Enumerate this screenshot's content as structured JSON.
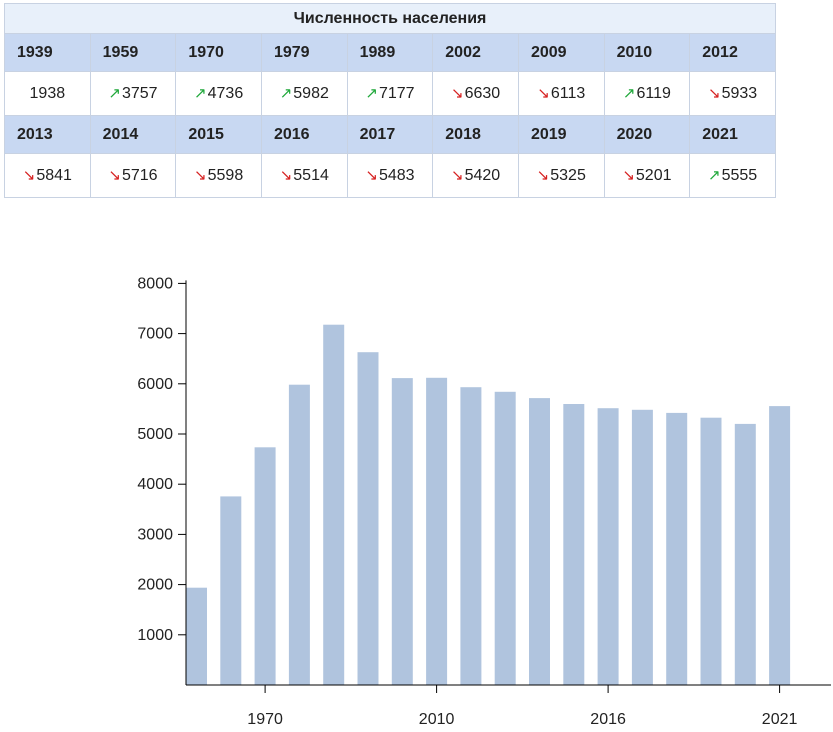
{
  "table": {
    "title": "Численность населения",
    "rows": [
      {
        "years": [
          "1939",
          "1959",
          "1970",
          "1979",
          "1989",
          "2002",
          "2009",
          "2010",
          "2012"
        ],
        "values": [
          {
            "value": "1938",
            "trend": "none"
          },
          {
            "value": "3757",
            "trend": "up"
          },
          {
            "value": "4736",
            "trend": "up"
          },
          {
            "value": "5982",
            "trend": "up"
          },
          {
            "value": "7177",
            "trend": "up"
          },
          {
            "value": "6630",
            "trend": "down"
          },
          {
            "value": "6113",
            "trend": "down"
          },
          {
            "value": "6119",
            "trend": "up"
          },
          {
            "value": "5933",
            "trend": "down"
          }
        ]
      },
      {
        "years": [
          "2013",
          "2014",
          "2015",
          "2016",
          "2017",
          "2018",
          "2019",
          "2020",
          "2021"
        ],
        "values": [
          {
            "value": "5841",
            "trend": "down"
          },
          {
            "value": "5716",
            "trend": "down"
          },
          {
            "value": "5598",
            "trend": "down"
          },
          {
            "value": "5514",
            "trend": "down"
          },
          {
            "value": "5483",
            "trend": "down"
          },
          {
            "value": "5420",
            "trend": "down"
          },
          {
            "value": "5325",
            "trend": "down"
          },
          {
            "value": "5201",
            "trend": "down"
          },
          {
            "value": "5555",
            "trend": "up"
          }
        ]
      }
    ],
    "trend_glyphs": {
      "up": "↗",
      "down": "↘",
      "none": ""
    },
    "colors": {
      "up": "#1fa83a",
      "down": "#d62020",
      "header_bg": "#c8d8f2",
      "title_bg": "#e8f0fa",
      "border": "#c8d2e2"
    }
  },
  "chart_data": {
    "type": "bar",
    "categories": [
      "1939",
      "1959",
      "1970",
      "1979",
      "1989",
      "2002",
      "2009",
      "2010",
      "2012",
      "2013",
      "2014",
      "2015",
      "2016",
      "2017",
      "2018",
      "2019",
      "2020",
      "2021"
    ],
    "values": [
      1938,
      3757,
      4736,
      5982,
      7177,
      6630,
      6113,
      6119,
      5933,
      5841,
      5716,
      5598,
      5514,
      5483,
      5420,
      5325,
      5201,
      5555
    ],
    "x_tick_labels": [
      {
        "category": "1970",
        "label": "1970"
      },
      {
        "category": "2010",
        "label": "2010"
      },
      {
        "category": "2016",
        "label": "2016"
      },
      {
        "category": "2021",
        "label": "2021"
      }
    ],
    "y_ticks": [
      1000,
      2000,
      3000,
      4000,
      5000,
      6000,
      7000,
      8000
    ],
    "ylim": [
      0,
      8000
    ],
    "title": "",
    "xlabel": "",
    "ylabel": "",
    "grid": false,
    "bar_color": "#b0c4de",
    "axis_color": "#000000"
  }
}
